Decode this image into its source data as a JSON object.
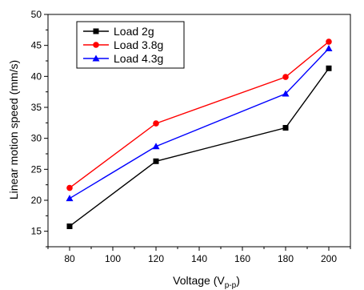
{
  "chart_data": {
    "type": "line",
    "x": [
      80,
      120,
      180,
      200
    ],
    "series": [
      {
        "name": "Load 2g",
        "color": "#000000",
        "marker": "square",
        "values": [
          15.8,
          26.3,
          31.7,
          41.3
        ]
      },
      {
        "name": "Load 3.8g",
        "color": "#ff0000",
        "marker": "circle",
        "values": [
          22.0,
          32.4,
          39.9,
          45.6
        ]
      },
      {
        "name": "Load 4.3g",
        "color": "#0000ff",
        "marker": "triangle",
        "values": [
          20.3,
          28.7,
          37.2,
          44.5
        ]
      }
    ],
    "xlabel_main": "Voltage (V",
    "xlabel_sub": "p-p",
    "xlabel_close": ")",
    "ylabel": "Linear motion speed (mm/s)",
    "xlim": [
      70,
      210
    ],
    "ylim": [
      12.5,
      50
    ],
    "xticks": [
      80,
      100,
      120,
      140,
      160,
      180,
      200
    ],
    "yticks": [
      15,
      20,
      25,
      30,
      35,
      40,
      45,
      50
    ],
    "grid": false,
    "legend_position": "top-left"
  }
}
